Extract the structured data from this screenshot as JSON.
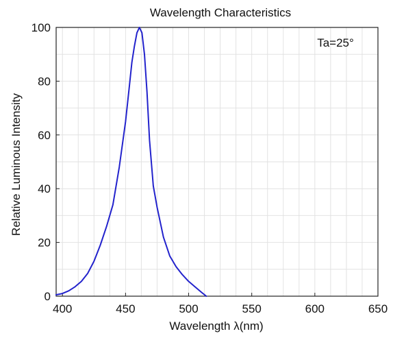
{
  "chart_data": {
    "type": "line",
    "title": "Wavelength Characteristics",
    "xlabel": "Wavelength λ(nm)",
    "ylabel": "Relative Luminous Intensity",
    "annotation": "Ta=25°",
    "xlim": [
      395,
      650
    ],
    "ylim": [
      0,
      100
    ],
    "x_ticks": [
      400,
      450,
      500,
      550,
      600,
      650
    ],
    "y_ticks": [
      0,
      20,
      40,
      60,
      80,
      100
    ],
    "x_tick_labels": [
      "400",
      "450",
      "500",
      "550",
      "600",
      "650"
    ],
    "y_tick_labels": [
      "0",
      "20",
      "40",
      "60",
      "80",
      "100"
    ],
    "grid": true,
    "colors": {
      "line": "#2222cc",
      "grid": "#e2e2e2",
      "axis": "#222222"
    },
    "series": [
      {
        "x": [
          395,
          400,
          405,
          410,
          415,
          420,
          425,
          430,
          435,
          440,
          445,
          450,
          453,
          455,
          457,
          459,
          461,
          463,
          465,
          467,
          469,
          472,
          475,
          480,
          485,
          490,
          495,
          500,
          505,
          510,
          514
        ],
        "values": [
          0.5,
          1,
          2,
          3.5,
          5.5,
          8.5,
          13,
          19,
          26,
          34,
          48,
          65,
          78,
          87,
          93,
          98,
          100,
          98,
          90,
          76,
          58,
          41,
          33,
          22,
          15,
          11,
          8,
          5.5,
          3.5,
          1.5,
          0
        ]
      }
    ]
  }
}
